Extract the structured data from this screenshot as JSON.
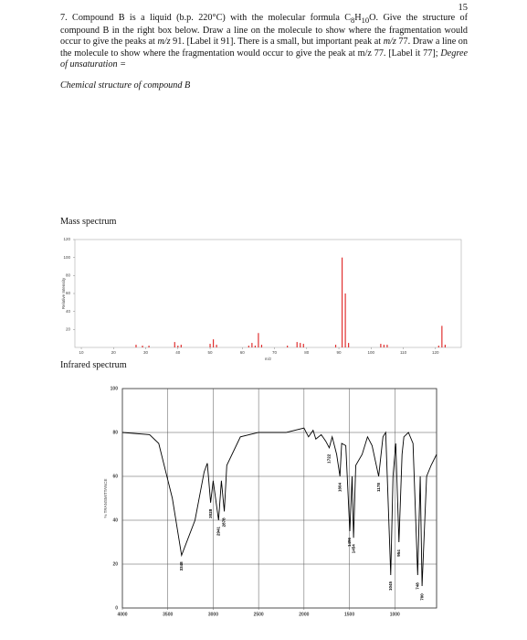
{
  "page_number": "15",
  "question": [
    "7. Compound B is a liquid (b.p. 220°C) with the molecular formula C",
    "8",
    "H",
    "10",
    "O. Give the structure of compound B in the right box below. Draw a line on the molecule to show where the fragmentation would occur to give the peaks at ",
    "m/z",
    " 91. [Label it 91]. There is a small, but important peak at ",
    "m/z",
    " 77. Draw a line on the molecule to show where the fragmentation would occur to give the peak at m/z 77. [Label it 77]; ",
    "Degree of unsaturation ="
  ],
  "structure_label": "Chemical structure of compound B",
  "chart_data": [
    {
      "type": "bar",
      "title": "Mass spectrum",
      "xlabel": "m/z",
      "ylabel": "Relative Intensity",
      "color": "#e03030",
      "x": [
        27,
        29,
        31,
        39,
        40,
        41,
        50,
        51,
        52,
        62,
        63,
        64,
        65,
        66,
        74,
        77,
        78,
        79,
        89,
        91,
        92,
        93,
        103,
        104,
        105,
        121,
        122,
        123
      ],
      "values": [
        3,
        2,
        2,
        6,
        2,
        3,
        4,
        9,
        3,
        2,
        5,
        2,
        16,
        3,
        2,
        6,
        5,
        4,
        3,
        100,
        60,
        5,
        4,
        3,
        3,
        2,
        24,
        3
      ],
      "xlim": [
        8,
        128
      ],
      "ylim": [
        0,
        120
      ],
      "xticks": [
        10,
        20,
        30,
        40,
        50,
        60,
        70,
        80,
        90,
        100,
        110,
        120
      ],
      "yticks": [
        20,
        40,
        60,
        80,
        100,
        120
      ],
      "grid": false
    },
    {
      "type": "line",
      "title": "Infrared spectrum",
      "ylabel": "% TRANSMITTANCE",
      "color": "#000000",
      "x": [
        4000,
        3700,
        3600,
        3450,
        3348,
        3200,
        3100,
        3065,
        3028,
        3000,
        2941,
        2910,
        2878,
        2850,
        2700,
        2500,
        2200,
        2000,
        1950,
        1900,
        1870,
        1810,
        1760,
        1722,
        1690,
        1640,
        1604,
        1585,
        1540,
        1496,
        1470,
        1454,
        1430,
        1360,
        1300,
        1250,
        1178,
        1130,
        1100,
        1045,
        1020,
        990,
        954,
        920,
        900,
        850,
        800,
        748,
        720,
        700,
        650,
        600,
        540
      ],
      "y": [
        80,
        79,
        75,
        50,
        24,
        40,
        62,
        66,
        48,
        58,
        40,
        58,
        44,
        65,
        78,
        80,
        80,
        82,
        78,
        81,
        77,
        79,
        76,
        73,
        78,
        70,
        60,
        75,
        74,
        35,
        60,
        32,
        65,
        70,
        78,
        74,
        60,
        78,
        80,
        15,
        60,
        75,
        30,
        70,
        78,
        80,
        75,
        15,
        60,
        10,
        60,
        65,
        70
      ],
      "peak_labels": [
        3348,
        3028,
        2941,
        2878,
        1722,
        1604,
        1496,
        1454,
        1178,
        1045,
        954,
        748,
        700
      ],
      "xlim": [
        4000,
        540
      ],
      "ylim": [
        0,
        100
      ],
      "xticks": [
        4000,
        3500,
        3000,
        2500,
        2000,
        1500,
        1000
      ],
      "yticks": [
        0,
        20,
        40,
        60,
        80,
        100
      ],
      "grid": true
    }
  ]
}
